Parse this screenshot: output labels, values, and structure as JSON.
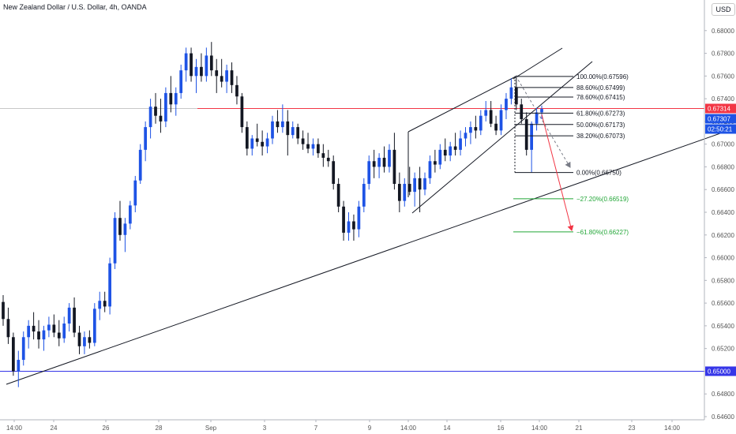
{
  "header": {
    "title": "New Zealand Dollar / U.S. Dollar, 4h, OANDA",
    "currency": "USD"
  },
  "chart_data": {
    "type": "candlestick",
    "title": "New Zealand Dollar / U.S. Dollar, 4h, OANDA",
    "ylim": [
      0.646,
      0.682
    ],
    "y_ticks": [
      "0.68000",
      "0.67800",
      "0.67600",
      "0.67400",
      "0.67200",
      "0.67000",
      "0.66800",
      "0.66600",
      "0.66400",
      "0.66200",
      "0.66000",
      "0.65800",
      "0.65600",
      "0.65400",
      "0.65200",
      "0.65000",
      "0.64800",
      "0.64600"
    ],
    "x_ticks": [
      "14:00",
      "24",
      "26",
      "28",
      "Sep",
      "3",
      "7",
      "9",
      "14:00",
      "14",
      "16",
      "14:00",
      "21",
      "23",
      "14:00"
    ],
    "colors": {
      "up": "#1e53e5",
      "down": "#131722",
      "resistance": "#f23645",
      "support": "#3636e8",
      "fib": "#131722",
      "fib_extension": "#22a637"
    },
    "candles": [
      [
        0.6561,
        0.6567,
        0.654,
        0.6546
      ],
      [
        0.6546,
        0.6556,
        0.6524,
        0.653
      ],
      [
        0.653,
        0.6534,
        0.6496,
        0.65
      ],
      [
        0.65,
        0.6518,
        0.6486,
        0.651
      ],
      [
        0.651,
        0.6535,
        0.6505,
        0.653
      ],
      [
        0.653,
        0.6545,
        0.652,
        0.654
      ],
      [
        0.654,
        0.6552,
        0.6528,
        0.6535
      ],
      [
        0.6535,
        0.6545,
        0.652,
        0.6528
      ],
      [
        0.6528,
        0.654,
        0.6518,
        0.6536
      ],
      [
        0.6536,
        0.6548,
        0.653,
        0.6541
      ],
      [
        0.6541,
        0.655,
        0.653,
        0.6534
      ],
      [
        0.6534,
        0.6545,
        0.6522,
        0.6529
      ],
      [
        0.6529,
        0.6548,
        0.6525,
        0.6542
      ],
      [
        0.6542,
        0.656,
        0.6535,
        0.6556
      ],
      [
        0.6556,
        0.6565,
        0.653,
        0.6534
      ],
      [
        0.6534,
        0.654,
        0.6515,
        0.6522
      ],
      [
        0.6522,
        0.6535,
        0.6515,
        0.653
      ],
      [
        0.653,
        0.6536,
        0.652,
        0.6525
      ],
      [
        0.6525,
        0.656,
        0.6522,
        0.6555
      ],
      [
        0.6555,
        0.657,
        0.6545,
        0.6562
      ],
      [
        0.6562,
        0.657,
        0.6552,
        0.6557
      ],
      [
        0.6557,
        0.66,
        0.655,
        0.6595
      ],
      [
        0.6595,
        0.664,
        0.659,
        0.6635
      ],
      [
        0.6635,
        0.665,
        0.6615,
        0.662
      ],
      [
        0.662,
        0.6635,
        0.6605,
        0.663
      ],
      [
        0.663,
        0.665,
        0.6625,
        0.6646
      ],
      [
        0.6646,
        0.6672,
        0.664,
        0.6668
      ],
      [
        0.6668,
        0.67,
        0.6665,
        0.6695
      ],
      [
        0.6695,
        0.672,
        0.6685,
        0.6715
      ],
      [
        0.6715,
        0.674,
        0.6705,
        0.6733
      ],
      [
        0.6733,
        0.6745,
        0.6718,
        0.6725
      ],
      [
        0.6725,
        0.674,
        0.671,
        0.672
      ],
      [
        0.672,
        0.675,
        0.6715,
        0.6745
      ],
      [
        0.6745,
        0.676,
        0.6728,
        0.6735
      ],
      [
        0.6735,
        0.675,
        0.6725,
        0.6745
      ],
      [
        0.6745,
        0.677,
        0.674,
        0.6765
      ],
      [
        0.6765,
        0.6785,
        0.6755,
        0.678
      ],
      [
        0.678,
        0.6785,
        0.6755,
        0.676
      ],
      [
        0.676,
        0.6775,
        0.6745,
        0.6768
      ],
      [
        0.6768,
        0.678,
        0.6755,
        0.676
      ],
      [
        0.676,
        0.6785,
        0.6755,
        0.6778
      ],
      [
        0.6778,
        0.679,
        0.676,
        0.6765
      ],
      [
        0.6765,
        0.6775,
        0.6745,
        0.676
      ],
      [
        0.676,
        0.6775,
        0.675,
        0.6755
      ],
      [
        0.6755,
        0.677,
        0.6745,
        0.6765
      ],
      [
        0.6765,
        0.6772,
        0.6745,
        0.6752
      ],
      [
        0.6752,
        0.676,
        0.6735,
        0.6742
      ],
      [
        0.6742,
        0.6745,
        0.671,
        0.6715
      ],
      [
        0.6715,
        0.672,
        0.669,
        0.6696
      ],
      [
        0.6696,
        0.6708,
        0.669,
        0.6705
      ],
      [
        0.6705,
        0.6718,
        0.6698,
        0.6702
      ],
      [
        0.6702,
        0.6712,
        0.669,
        0.6698
      ],
      [
        0.6698,
        0.671,
        0.6692,
        0.6705
      ],
      [
        0.6705,
        0.6725,
        0.67,
        0.672
      ],
      [
        0.672,
        0.673,
        0.671,
        0.6715
      ],
      [
        0.6715,
        0.6735,
        0.671,
        0.672
      ],
      [
        0.672,
        0.673,
        0.669,
        0.6708
      ],
      [
        0.6708,
        0.672,
        0.6705,
        0.6715
      ],
      [
        0.6715,
        0.6718,
        0.67,
        0.6705
      ],
      [
        0.6705,
        0.6712,
        0.6695,
        0.67
      ],
      [
        0.67,
        0.671,
        0.6692,
        0.6696
      ],
      [
        0.6696,
        0.6705,
        0.669,
        0.67
      ],
      [
        0.67,
        0.6705,
        0.6688,
        0.6692
      ],
      [
        0.6692,
        0.67,
        0.668,
        0.6688
      ],
      [
        0.6688,
        0.6695,
        0.668,
        0.6685
      ],
      [
        0.6685,
        0.669,
        0.666,
        0.6665
      ],
      [
        0.6665,
        0.667,
        0.664,
        0.6645
      ],
      [
        0.6645,
        0.665,
        0.6615,
        0.6622
      ],
      [
        0.6622,
        0.664,
        0.6615,
        0.6632
      ],
      [
        0.6632,
        0.6638,
        0.6615,
        0.6625
      ],
      [
        0.6625,
        0.665,
        0.6618,
        0.6645
      ],
      [
        0.6645,
        0.667,
        0.664,
        0.6665
      ],
      [
        0.6665,
        0.669,
        0.666,
        0.6685
      ],
      [
        0.6685,
        0.6695,
        0.667,
        0.668
      ],
      [
        0.668,
        0.6692,
        0.667,
        0.6688
      ],
      [
        0.6688,
        0.6698,
        0.6675,
        0.668
      ],
      [
        0.668,
        0.67,
        0.6675,
        0.6695
      ],
      [
        0.6695,
        0.671,
        0.666,
        0.6665
      ],
      [
        0.6665,
        0.6675,
        0.664,
        0.665
      ],
      [
        0.665,
        0.667,
        0.6645,
        0.6665
      ],
      [
        0.6665,
        0.668,
        0.6655,
        0.6658
      ],
      [
        0.6658,
        0.6675,
        0.6645,
        0.667
      ],
      [
        0.667,
        0.668,
        0.664,
        0.666
      ],
      [
        0.666,
        0.6675,
        0.6655,
        0.667
      ],
      [
        0.667,
        0.669,
        0.6665,
        0.6685
      ],
      [
        0.6685,
        0.6695,
        0.6675,
        0.6682
      ],
      [
        0.6682,
        0.67,
        0.6678,
        0.6695
      ],
      [
        0.6695,
        0.6705,
        0.6685,
        0.669
      ],
      [
        0.669,
        0.6702,
        0.6685,
        0.6698
      ],
      [
        0.6698,
        0.671,
        0.669,
        0.6695
      ],
      [
        0.6695,
        0.6712,
        0.669,
        0.6705
      ],
      [
        0.6705,
        0.6715,
        0.6698,
        0.671
      ],
      [
        0.671,
        0.672,
        0.67,
        0.6715
      ],
      [
        0.6715,
        0.6725,
        0.6705,
        0.6712
      ],
      [
        0.6712,
        0.673,
        0.6708,
        0.6725
      ],
      [
        0.6725,
        0.6738,
        0.672,
        0.673
      ],
      [
        0.673,
        0.6738,
        0.6715,
        0.6718
      ],
      [
        0.6718,
        0.6725,
        0.6708,
        0.6712
      ],
      [
        0.6712,
        0.6735,
        0.6708,
        0.673
      ],
      [
        0.673,
        0.6745,
        0.6722,
        0.674
      ],
      [
        0.674,
        0.6758,
        0.6735,
        0.675
      ],
      [
        0.675,
        0.676,
        0.673,
        0.6735
      ],
      [
        0.6735,
        0.674,
        0.6718,
        0.6722
      ],
      [
        0.6722,
        0.6728,
        0.669,
        0.6695
      ],
      [
        0.6695,
        0.672,
        0.6675,
        0.6718
      ],
      [
        0.6718,
        0.6732,
        0.6712,
        0.6728
      ],
      [
        0.6728,
        0.6734,
        0.6722,
        0.6731
      ]
    ],
    "horizontal_levels": [
      {
        "price": 0.67314,
        "label": "0.67314",
        "color": "#f23645"
      },
      {
        "price": 0.65,
        "label": "0.65000",
        "color": "#3636e8"
      }
    ],
    "price_labels": [
      {
        "price": 0.67307,
        "label": "0.67307",
        "color": "#1e53e5"
      },
      {
        "label": "02:50:21",
        "color": "#1e53e5"
      }
    ],
    "fibonacci": [
      {
        "level": "100.00%",
        "price": 0.67596,
        "label": "100.00%(0.67596)"
      },
      {
        "level": "88.60%",
        "price": 0.67499,
        "label": "88.60%(0.67499)"
      },
      {
        "level": "78.60%",
        "price": 0.67415,
        "label": "78.60%(0.67415)"
      },
      {
        "level": "61.80%",
        "price": 0.67273,
        "label": "61.80%(0.67273)"
      },
      {
        "level": "50.00%",
        "price": 0.67173,
        "label": "50.00%(0.67173)"
      },
      {
        "level": "38.20%",
        "price": 0.67073,
        "label": "38.20%(0.67073)"
      },
      {
        "level": "0.00%",
        "price": 0.6675,
        "label": "0.00%(0.66750)"
      },
      {
        "level": "-27.20%",
        "price": 0.66519,
        "label": "−27.20%(0.66519)"
      },
      {
        "level": "-61.80%",
        "price": 0.66227,
        "label": "−61.80%(0.66227)"
      }
    ]
  }
}
